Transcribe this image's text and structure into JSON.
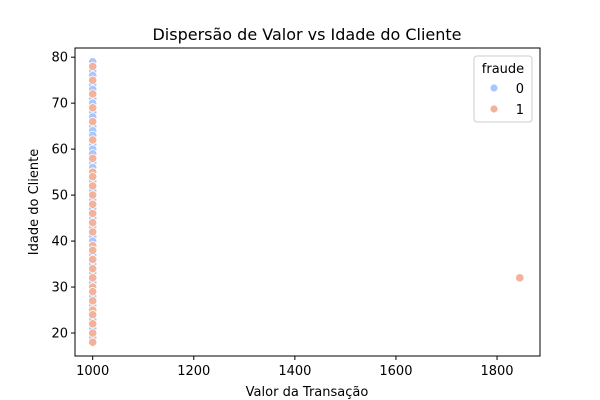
{
  "chart_data": {
    "type": "scatter",
    "title": "Dispersão de Valor vs Idade do Cliente",
    "xlabel": "Valor da Transação",
    "ylabel": "Idade do Cliente",
    "xlim": [
      965,
      1885
    ],
    "ylim": [
      15,
      82
    ],
    "xticks": [
      1000,
      1200,
      1400,
      1600,
      1800
    ],
    "yticks": [
      20,
      30,
      40,
      50,
      60,
      70,
      80
    ],
    "grid": false,
    "legend": {
      "title": "fraude",
      "placement": "top-right"
    },
    "series": [
      {
        "name": "0",
        "color": "#a9c7fc",
        "points": [
          [
            1000,
            79
          ],
          [
            1000,
            77
          ],
          [
            1000,
            76
          ],
          [
            1000,
            75
          ],
          [
            1000,
            74
          ],
          [
            1000,
            73
          ],
          [
            1000,
            72
          ],
          [
            1000,
            71
          ],
          [
            1000,
            70
          ],
          [
            1000,
            68
          ],
          [
            1000,
            67
          ],
          [
            1000,
            66
          ],
          [
            1000,
            65
          ],
          [
            1000,
            64
          ],
          [
            1000,
            63
          ],
          [
            1000,
            61
          ],
          [
            1000,
            60
          ],
          [
            1000,
            59
          ],
          [
            1000,
            57
          ],
          [
            1000,
            56
          ],
          [
            1000,
            55
          ],
          [
            1000,
            53
          ],
          [
            1000,
            51
          ],
          [
            1000,
            50
          ],
          [
            1000,
            49
          ],
          [
            1000,
            47
          ],
          [
            1000,
            45
          ],
          [
            1000,
            44
          ],
          [
            1000,
            43
          ],
          [
            1000,
            41
          ],
          [
            1000,
            40
          ],
          [
            1000,
            39
          ],
          [
            1000,
            37
          ],
          [
            1000,
            36
          ],
          [
            1000,
            35
          ],
          [
            1000,
            33
          ],
          [
            1000,
            32
          ],
          [
            1000,
            31
          ],
          [
            1000,
            30
          ],
          [
            1000,
            28
          ],
          [
            1000,
            27
          ],
          [
            1000,
            26
          ],
          [
            1000,
            25
          ],
          [
            1000,
            23
          ],
          [
            1000,
            22
          ],
          [
            1000,
            21
          ],
          [
            1000,
            19
          ]
        ]
      },
      {
        "name": "1",
        "color": "#f2b29b",
        "points": [
          [
            1000,
            78
          ],
          [
            1000,
            75
          ],
          [
            1000,
            72
          ],
          [
            1000,
            69
          ],
          [
            1000,
            66
          ],
          [
            1000,
            62
          ],
          [
            1000,
            58
          ],
          [
            1000,
            55
          ],
          [
            1000,
            54
          ],
          [
            1000,
            52
          ],
          [
            1000,
            50
          ],
          [
            1000,
            48
          ],
          [
            1000,
            46
          ],
          [
            1000,
            44
          ],
          [
            1000,
            42
          ],
          [
            1000,
            39
          ],
          [
            1000,
            38
          ],
          [
            1000,
            36
          ],
          [
            1000,
            34
          ],
          [
            1000,
            32
          ],
          [
            1000,
            30
          ],
          [
            1000,
            29
          ],
          [
            1000,
            27
          ],
          [
            1000,
            25
          ],
          [
            1000,
            24
          ],
          [
            1000,
            22
          ],
          [
            1000,
            20
          ],
          [
            1000,
            18
          ],
          [
            1845,
            32
          ]
        ]
      }
    ]
  }
}
